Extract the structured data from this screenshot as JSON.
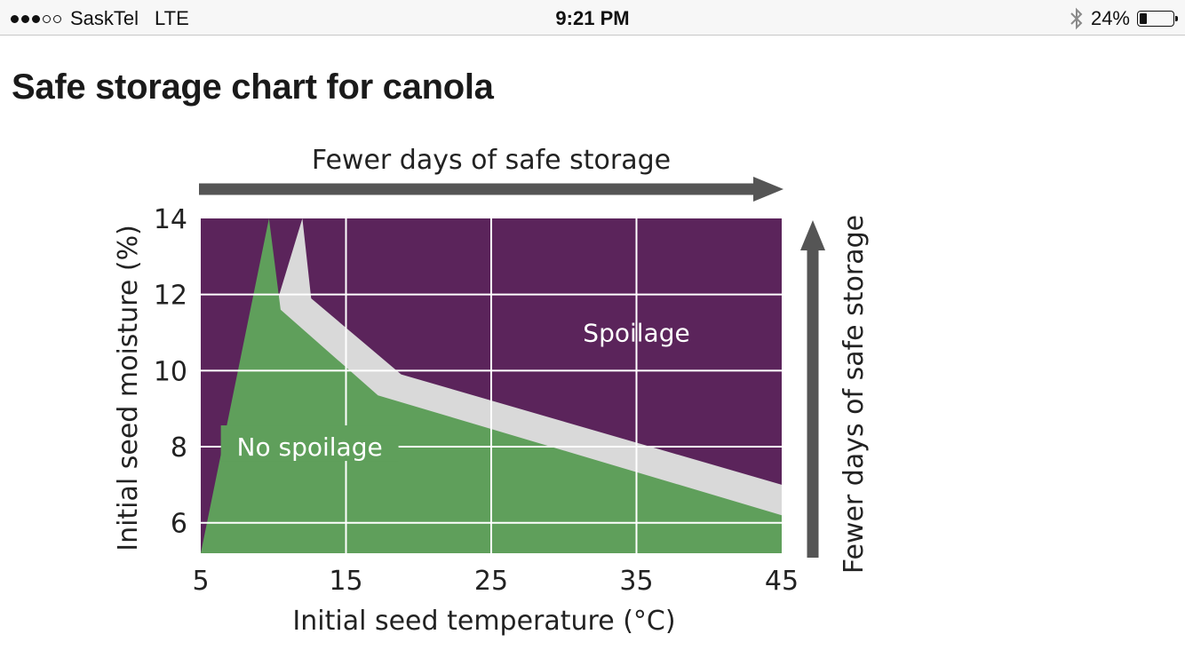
{
  "status_bar": {
    "signal_bars_filled": 3,
    "signal_bars_total": 5,
    "carrier": "SaskTel",
    "network": "LTE",
    "time": "9:21 PM",
    "battery_percent": "24%",
    "battery_level": 0.24,
    "icons": [
      "signal-dots-icon",
      "bluetooth-icon",
      "battery-icon"
    ]
  },
  "page": {
    "title": "Safe storage chart for canola"
  },
  "chart_data": {
    "type": "area",
    "title": "",
    "xlabel": "Initial seed temperature (°C)",
    "ylabel": "Initial seed moisture (%)",
    "xlim": [
      5,
      45
    ],
    "ylim": [
      5.2,
      14
    ],
    "x_ticks": [
      5,
      15,
      25,
      35,
      45
    ],
    "y_ticks": [
      6,
      8,
      10,
      12,
      14
    ],
    "x_tick_labels": [
      "5",
      "15",
      "25",
      "35",
      "45"
    ],
    "y_tick_labels": [
      "6",
      "8",
      "10",
      "12",
      "14"
    ],
    "grid": true,
    "top_arrow_label": "Fewer days of safe storage",
    "right_arrow_label": "Fewer days of safe storage",
    "regions": [
      {
        "name": "No spoilage",
        "label": "No spoilage",
        "label_at": [
          12.5,
          8.0
        ],
        "color": "#5f9f5b"
      },
      {
        "name": "Spoilage",
        "label": "Spoilage",
        "label_at": [
          35,
          11.0
        ],
        "color": "#5b245b"
      }
    ],
    "transition_band_color": "#d9d9d9",
    "band_lower_boundary": {
      "x": [
        9.7,
        10.5,
        17.2,
        45
      ],
      "y": [
        14,
        11.6,
        9.35,
        6.2
      ]
    },
    "band_upper_boundary": {
      "x": [
        12.0,
        12.6,
        18.8,
        45
      ],
      "y": [
        14,
        11.9,
        9.9,
        7.0
      ]
    },
    "colors": {
      "grid": "#ffffff",
      "arrow": "#555555",
      "axis_text": "#222222"
    }
  }
}
